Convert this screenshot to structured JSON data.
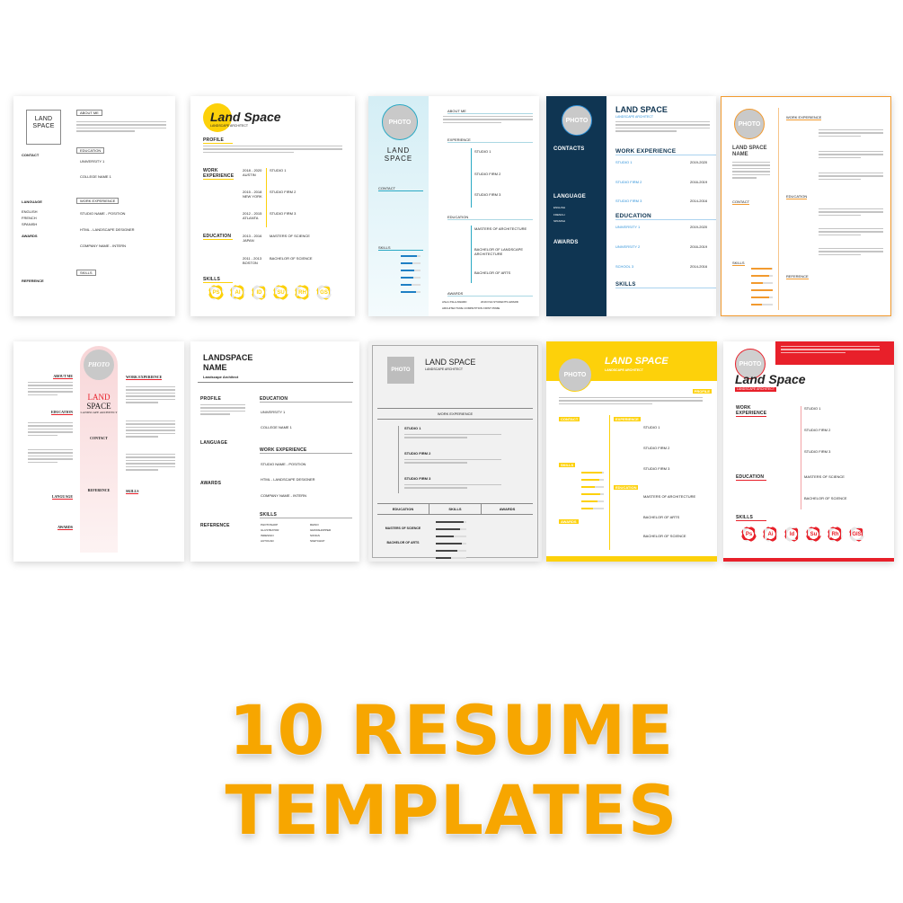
{
  "headline": "10 RESUME TEMPLATES",
  "colors": {
    "headline": "#f7a600",
    "yellow": "#fdd10a",
    "navy": "#0f3552",
    "teal": "#2aa9c4",
    "orange": "#f29a2e",
    "red": "#e8202a",
    "pink": "#f8dfe0"
  },
  "photo_label": "PHOTO",
  "templates": [
    {
      "name_line1": "LAND",
      "name_line2": "SPACE",
      "subtitle": "LANDSCAPE ARCHITECT",
      "sections": [
        "ABOUT ME",
        "EDUCATION",
        "WORK EXPERIENCE",
        "SKILLS",
        "CONTACT",
        "LANGUAGE",
        "AWARDS",
        "REFERENCE"
      ],
      "entries": [
        "UNIVERSITY 1",
        "COLLEGE NAME 1",
        "STUDIO NAME - POSITION",
        "HTML - LANDSCAPE DESIGNER",
        "COMPANY NAME - INTERN"
      ],
      "languages": [
        "ENGLISH",
        "FRENCH",
        "SPANISH"
      ]
    },
    {
      "name": "Land Space",
      "subtitle": "LANDSCAPE ARCHITECT",
      "sections": [
        "PROFILE",
        "WORK EXPERIENCE",
        "EDUCATION",
        "SKILLS"
      ],
      "dates": [
        "2018 - 2020",
        "2015 - 2018",
        "2012 - 2015",
        "2013 - 2016",
        "2011 - 2013"
      ],
      "places": [
        "AUSTIN",
        "NEW YORK",
        "ATLANTA",
        "JAPAN",
        "BOSTON"
      ],
      "entries": [
        "STUDIO 1",
        "STUDIO FIRM 2",
        "STUDIO FIRM 3",
        "MASTERS OF SCIENCE",
        "BACHELOR OF SCIENCE"
      ],
      "skills": [
        "PS",
        "AI",
        "ID",
        "SU",
        "RH",
        "GS"
      ],
      "skill_levels": [
        0.75,
        0.6,
        0.4,
        0.7,
        0.65,
        0.3
      ]
    },
    {
      "name_line1": "LAND",
      "name_line2": "SPACE",
      "sections": [
        "ABOUT ME",
        "EXPERIENCE",
        "EDUCATION",
        "AWARDS",
        "CONTACT",
        "SKILLS"
      ],
      "entries": [
        "STUDIO 1",
        "STUDIO FIRM 2",
        "STUDIO FIRM 3",
        "MASTERS OF ARCHITECTURE",
        "BACHELOR OF LANDSCAPE ARCHITECTURE",
        "BACHELOR OF ARTS"
      ],
      "awards": [
        "ASLA XSLA AWARD",
        "2019 KSA STUDENTS AWARD",
        "ARCHITECTURE COMPETITION FIRST PRIZE"
      ],
      "skill_levels": [
        0.8,
        0.6,
        0.7,
        0.65,
        0.55,
        0.75
      ]
    },
    {
      "name": "LAND SPACE",
      "subtitle": "LANDSCAPE ARCHITECT",
      "sections": [
        "CONTACTS",
        "LANGUAGE",
        "AWARDS",
        "WORK EXPERIENCE",
        "EDUCATION",
        "SKILLS"
      ],
      "languages": [
        "ENGLISH",
        "FRENCH",
        "SPANISH"
      ],
      "entries": [
        "STUDIO 1",
        "STUDIO FIRM 2",
        "STUDIO FIRM 3",
        "UNIVERSITY 1",
        "UNIVERSITY 2",
        "SCHOOL 3"
      ],
      "dates": [
        "2019-2020",
        "2016-2019",
        "2014-2016",
        "2019-2020",
        "2016-2019",
        "2014-2016"
      ]
    },
    {
      "name_line1": "LAND SPACE",
      "name_line2": "NAME",
      "sections": [
        "CONTACT",
        "SKILLS",
        "WORK EXPERIENCE",
        "EDUCATION",
        "REFERENCE"
      ],
      "skill_levels": [
        0.95,
        0.85,
        0.55,
        1.0,
        0.85,
        0.5
      ]
    },
    {
      "name_line1": "LAND",
      "name_line2": "SPACE",
      "subtitle": "LANDSCAPE ARCHITECT",
      "sections": [
        "ABOUT ME",
        "EDUCATION",
        "LANGUAGE",
        "AWARDS",
        "CONTACT",
        "REFERENCE",
        "WORK EXPERIENCE",
        "SKILLS"
      ]
    },
    {
      "name_line1": "LANDSPACE",
      "name_line2": "NAME",
      "subtitle": "Landscape Architect",
      "sections": [
        "PROFILE",
        "LANGUAGE",
        "AWARDS",
        "REFERENCE",
        "EDUCATION",
        "WORK EXPERIENCE",
        "SKILLS"
      ],
      "entries": [
        "UNIVERSITY 1",
        "COLLEGE NAME 1",
        "STUDIO NAME - POSITION",
        "HTML - LANDSCAPE DESIGNER",
        "COMPANY NAME - INTERN"
      ],
      "skills": [
        "PHOTOSHOP",
        "ILLUSTRATOR",
        "INDESIGN",
        "AUTOCAD",
        "RHINO",
        "GRASSHOPPER",
        "SONGS",
        "SKETCHUP"
      ]
    },
    {
      "name": "LAND SPACE",
      "subtitle": "LANDSCAPE ARCHITECT",
      "sections": [
        "WORK EXPERIENCE",
        "EDUCATION",
        "SKILLS",
        "AWARDS"
      ],
      "entries": [
        "STUDIO 1",
        "STUDIO FIRM 2",
        "STUDIO FIRM 3"
      ],
      "education": [
        "MASTERS OF SCIENCE",
        "BACHELOR OF ARTS"
      ]
    },
    {
      "name": "LAND SPACE",
      "subtitle": "LANDSCAPE ARCHITECT",
      "sections": [
        "PROFILE",
        "CONTACT",
        "SKILLS",
        "AWARDS",
        "EXPERIENCE",
        "EDUCATION"
      ],
      "entries": [
        "STUDIO 1",
        "STUDIO FIRM 2",
        "STUDIO FIRM 3",
        "MASTERS OF ARCHITECTURE",
        "BACHELOR OF ARTS",
        "BACHELOR OF SCIENCE"
      ]
    },
    {
      "name": "Land Space",
      "subtitle": "LANDSCAPE ARCHITECT",
      "sections": [
        "WORK EXPERIENCE",
        "EDUCATION",
        "SKILLS"
      ],
      "entries": [
        "STUDIO 1",
        "STUDIO FIRM 2",
        "STUDIO FIRM 3",
        "MASTERS OF SCIENCE",
        "BACHELOR OF SCIENCE"
      ],
      "skills": [
        "Ps",
        "Ai",
        "Id",
        "Su",
        "Rh",
        "GIS"
      ],
      "skill_levels": [
        0.75,
        0.6,
        0.4,
        0.7,
        0.65,
        0.3
      ]
    }
  ]
}
